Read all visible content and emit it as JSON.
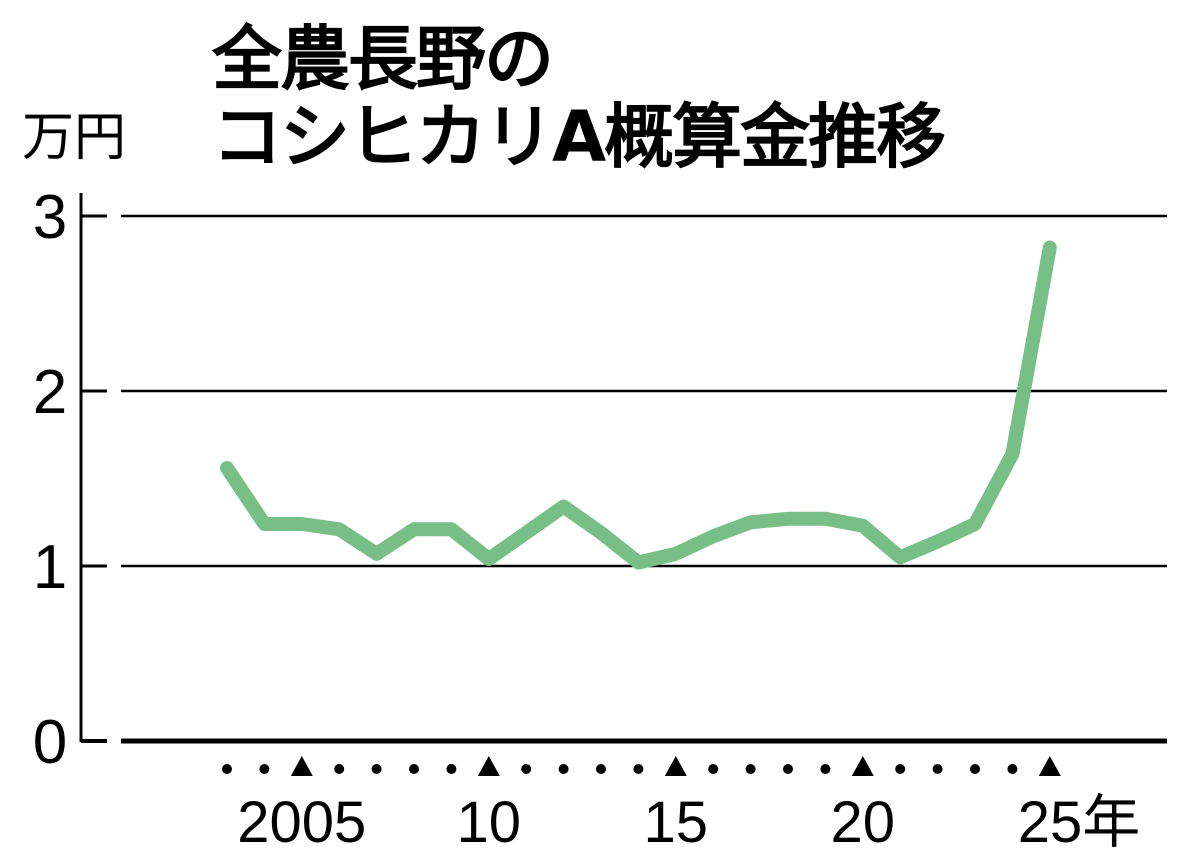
{
  "title_line1": "全農長野の",
  "title_line2": "コシヒカリA概算金推移",
  "unit": "万円",
  "chart_data": {
    "type": "line",
    "title": "全農長野のコシヒカリA概算金推移",
    "ylabel": "万円",
    "xlabel": "年",
    "ylim": [
      0,
      3
    ],
    "yticks": [
      "0",
      "1",
      "2",
      "3"
    ],
    "xticks": [
      {
        "year": 2005,
        "label": "2005"
      },
      {
        "year": 2010,
        "label": "10"
      },
      {
        "year": 2015,
        "label": "15"
      },
      {
        "year": 2020,
        "label": "20"
      },
      {
        "year": 2025,
        "label": "25年"
      }
    ],
    "grid": true,
    "series": [
      {
        "name": "コシヒカリA概算金",
        "color": "#77bf87",
        "x": [
          2003,
          2004,
          2005,
          2006,
          2007,
          2008,
          2009,
          2010,
          2011,
          2012,
          2013,
          2014,
          2015,
          2016,
          2017,
          2018,
          2019,
          2020,
          2021,
          2022,
          2023,
          2024,
          2025
        ],
        "values": [
          1.56,
          1.24,
          1.24,
          1.21,
          1.07,
          1.21,
          1.21,
          1.04,
          1.19,
          1.34,
          1.19,
          1.02,
          1.07,
          1.17,
          1.25,
          1.27,
          1.27,
          1.23,
          1.05,
          1.14,
          1.24,
          1.64,
          2.82
        ]
      }
    ]
  }
}
